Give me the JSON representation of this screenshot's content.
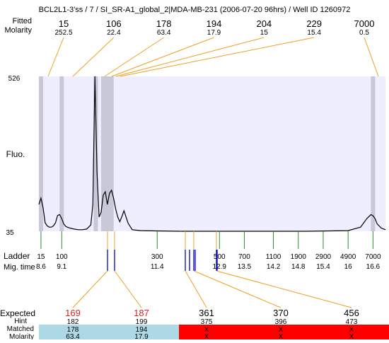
{
  "chart_data": {
    "type": "line",
    "title": "BCL2L1-3'ss / 7 / SI_SR-A1_global_2|MDA-MB-231 (2006-07-20 96hrs) / Well ID 1260972",
    "header_labels": [
      "Fitted",
      "Molarity"
    ],
    "top_peaks": [
      {
        "size": "15",
        "molarity": "252.5"
      },
      {
        "size": "106",
        "molarity": "22.4"
      },
      {
        "size": "178",
        "molarity": "63.4"
      },
      {
        "size": "194",
        "molarity": "17.9"
      },
      {
        "size": "204",
        "molarity": "15"
      },
      {
        "size": "229",
        "molarity": "15.4"
      },
      {
        "size": "7000",
        "molarity": "0.5"
      }
    ],
    "ylabel": "Fluo.",
    "y_ticks": [
      "526",
      "35"
    ],
    "ylim": [
      35,
      526
    ],
    "ladder_label": "Ladder",
    "migtime_label": "Mig. time",
    "ladder": [
      {
        "size": "15",
        "time": "8.6"
      },
      {
        "size": "100",
        "time": "9.1"
      },
      {
        "size": "300",
        "time": "11.4"
      },
      {
        "size": "500",
        "time": "12.9"
      },
      {
        "size": "700",
        "time": "13.5"
      },
      {
        "size": "1100",
        "time": "14.2"
      },
      {
        "size": "1900",
        "time": "14.8"
      },
      {
        "size": "2900",
        "time": "15.4"
      },
      {
        "size": "4900",
        "time": "16"
      },
      {
        "size": "7000",
        "time": "16.6"
      }
    ],
    "trace": {
      "x": [
        8.55,
        8.6,
        8.65,
        8.7,
        8.75,
        8.8,
        8.85,
        8.9,
        8.95,
        9.0,
        9.05,
        9.1,
        9.15,
        9.2,
        9.25,
        9.3,
        9.4,
        9.5,
        9.6,
        9.7,
        9.8,
        9.85,
        9.9,
        9.95,
        10.0,
        10.05,
        10.1,
        10.15,
        10.2,
        10.25,
        10.3,
        10.35,
        10.4,
        10.45,
        10.5,
        10.55,
        10.6,
        10.7,
        10.8,
        11.0,
        11.5,
        12.0,
        13.0,
        14.0,
        15.0,
        16.0,
        16.3,
        16.45,
        16.55,
        16.6,
        16.65,
        16.7,
        16.8,
        16.9
      ],
      "y": [
        120,
        140,
        110,
        62,
        52,
        48,
        48,
        52,
        62,
        85,
        88,
        75,
        58,
        50,
        47,
        45,
        42,
        40,
        40,
        42,
        55,
        120,
        526,
        220,
        80,
        95,
        150,
        160,
        120,
        155,
        165,
        140,
        105,
        80,
        65,
        82,
        100,
        60,
        40,
        37,
        36,
        35,
        35,
        35,
        35,
        37,
        48,
        75,
        88,
        84,
        75,
        58,
        45,
        40
      ]
    },
    "bands_x": [
      8.6,
      9.1,
      9.92,
      10.1,
      10.2,
      10.3,
      16.6
    ],
    "expected_label": "Expected",
    "hint_label": "Hint",
    "matched_label": "Matched",
    "molarity_label": "Molarity",
    "expected": [
      {
        "value": "169",
        "hint": "182",
        "matched": "178",
        "molarity": "63.4",
        "status": "found"
      },
      {
        "value": "187",
        "hint": "199",
        "matched": "194",
        "molarity": "17.9",
        "status": "found"
      },
      {
        "value": "361",
        "hint": "375",
        "matched": "X",
        "molarity": "X",
        "status": "missing"
      },
      {
        "value": "370",
        "hint": "396",
        "matched": "X",
        "molarity": "X",
        "status": "missing"
      },
      {
        "value": "456",
        "hint": "473",
        "matched": "X",
        "molarity": "X",
        "status": "missing"
      }
    ],
    "colors": {
      "plot_bg": "#EEEEFF",
      "band": "#C8C8D8",
      "connector": "#F0A020",
      "ladder_tick": "#2E8B2E",
      "marker": "#0000CC",
      "expected_found_text": "#DD2222",
      "found_bg": "#ADD8E6",
      "missing_bg": "#FF0000",
      "trace": "#000000"
    }
  }
}
